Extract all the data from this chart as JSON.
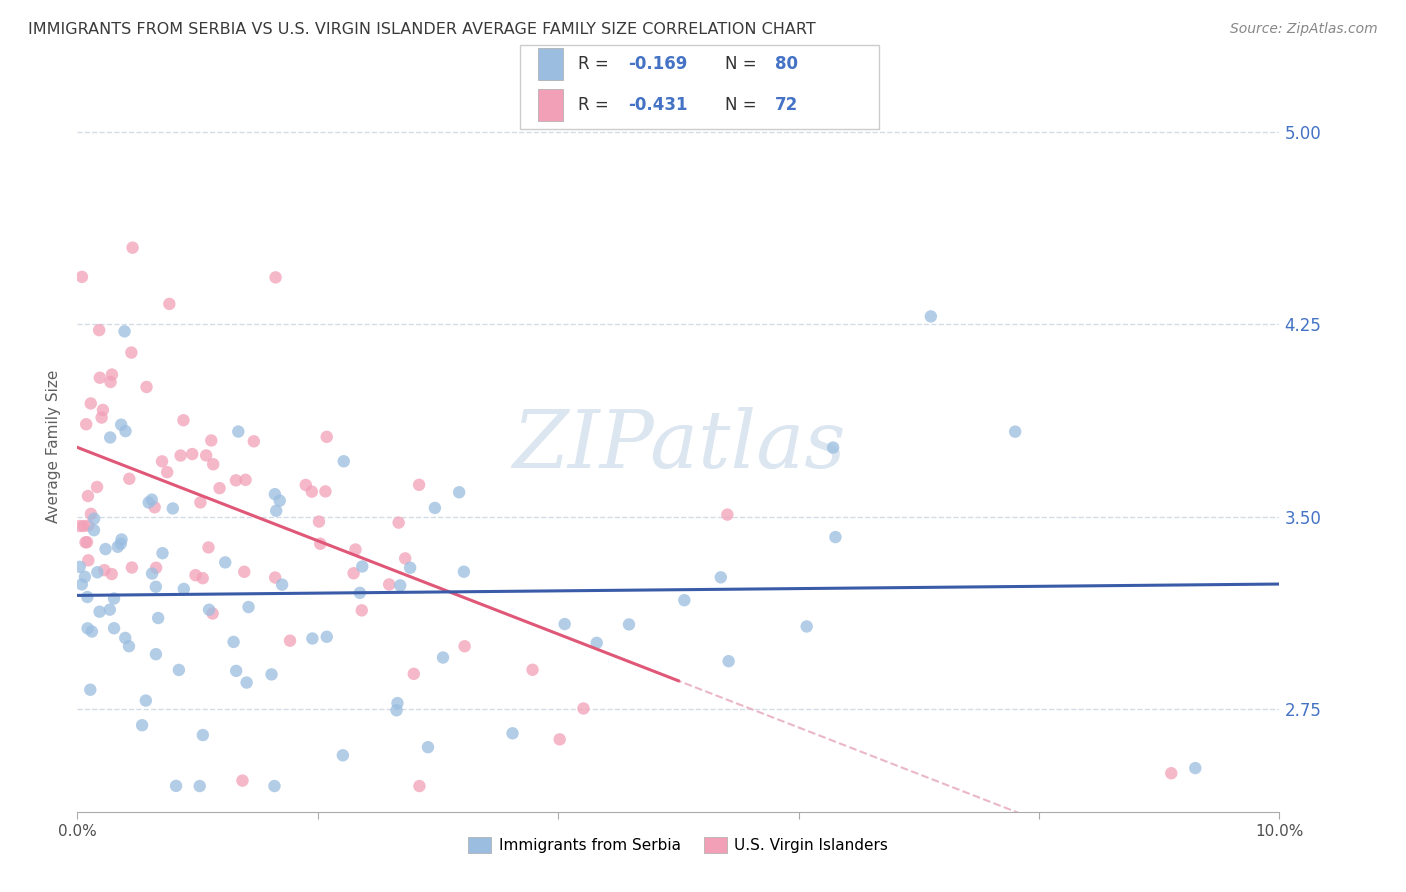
{
  "title": "IMMIGRANTS FROM SERBIA VS U.S. VIRGIN ISLANDER AVERAGE FAMILY SIZE CORRELATION CHART",
  "source": "Source: ZipAtlas.com",
  "ylabel": "Average Family Size",
  "xlim": [
    0.0,
    0.1
  ],
  "ylim": [
    2.35,
    5.2
  ],
  "yticks_right": [
    2.75,
    3.5,
    4.25,
    5.0
  ],
  "xtick_labels_show": [
    "0.0%",
    "10.0%"
  ],
  "xtick_positions_show": [
    0.0,
    0.1
  ],
  "legend1_R": "-0.169",
  "legend1_N": "80",
  "legend2_R": "-0.431",
  "legend2_N": "72",
  "blue_dot_color": "#9abde0",
  "pink_dot_color": "#f2a0b8",
  "blue_line_color": "#3a5ca8",
  "pink_line_color": "#e05878",
  "dashed_line_color": "#e8b0c0",
  "axis_tick_color": "#4472c4",
  "title_color": "#3a3a3a",
  "source_color": "#888888",
  "watermark_color": "#dce6f0",
  "grid_color": "#c8d4e0",
  "legend_box_label": "R = -0.169   N = 80\nR = -0.431   N = 72",
  "legend_blue_label": "Immigrants from Serbia",
  "legend_pink_label": "U.S. Virgin Islanders"
}
